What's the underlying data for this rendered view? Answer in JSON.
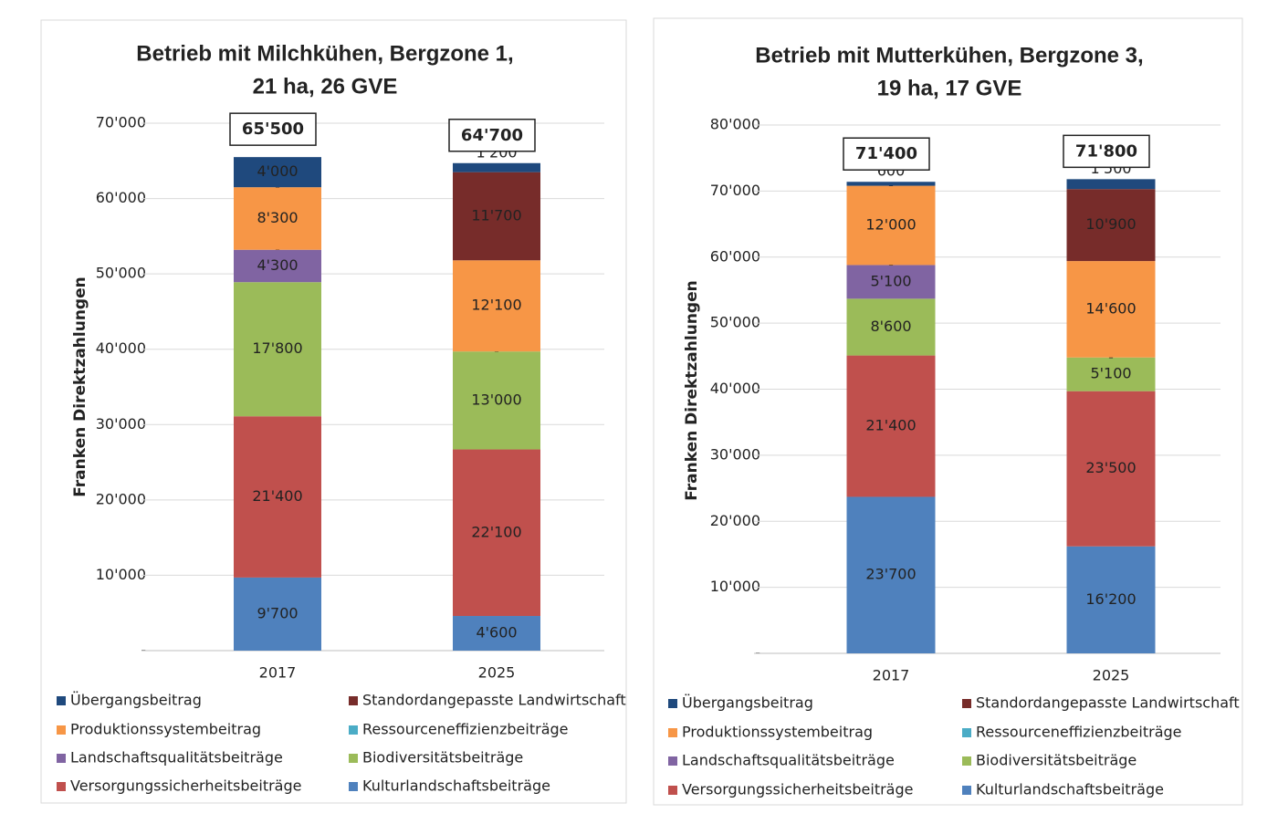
{
  "chart_data": [
    {
      "type": "stacked-bar",
      "title": [
        "Betrieb mit Milchkühen, Bergzone 1,",
        "21 ha, 26 GVE"
      ],
      "y_label": "Franken Direktzahlungen",
      "categories": [
        "2017",
        "2025"
      ],
      "ylim": [
        0,
        70000
      ],
      "yticks": [
        {
          "value": 0,
          "label": "-"
        },
        {
          "value": 10000,
          "label": "10'000"
        },
        {
          "value": 20000,
          "label": "20'000"
        },
        {
          "value": 30000,
          "label": "30'000"
        },
        {
          "value": 40000,
          "label": "40'000"
        },
        {
          "value": 50000,
          "label": "50'000"
        },
        {
          "value": 60000,
          "label": "60'000"
        },
        {
          "value": 70000,
          "label": "70'000"
        }
      ],
      "grid": true,
      "totals": {
        "values": [
          65500,
          64700
        ],
        "value_labels": [
          "65'500",
          "64'700"
        ]
      },
      "series": [
        {
          "name": "Kulturlandschaftsbeiträge",
          "color": "#4f81bd",
          "values": [
            9700,
            4600
          ],
          "value_labels": [
            "9'700",
            "4'600"
          ]
        },
        {
          "name": "Versorgungssicherheitsbeiträge",
          "color": "#c0504d",
          "values": [
            21400,
            22100
          ],
          "value_labels": [
            "21'400",
            "22'100"
          ]
        },
        {
          "name": "Biodiversitätsbeiträge",
          "color": "#9bbb59",
          "values": [
            17800,
            13000
          ],
          "value_labels": [
            "17'800",
            "13'000"
          ]
        },
        {
          "name": "Landschaftsqualitätsbeiträge",
          "color": "#8064a2",
          "values": [
            4300,
            0
          ],
          "value_labels": [
            "4'300",
            "-"
          ]
        },
        {
          "name": "Ressourceneffizienzbeiträge",
          "color": "#4bacc6",
          "values": [
            0,
            null
          ],
          "value_labels": [
            "-",
            null
          ]
        },
        {
          "name": "Produktionssystembeitrag",
          "color": "#f79646",
          "values": [
            8300,
            12100
          ],
          "value_labels": [
            "8'300",
            "12'100"
          ]
        },
        {
          "name": "Standordangepasste Landwirtschaft",
          "color": "#772c2a",
          "values": [
            0,
            11700
          ],
          "value_labels": [
            "-",
            "11'700"
          ]
        },
        {
          "name": "Übergangsbeitrag",
          "color": "#1f497d",
          "values": [
            4000,
            1200
          ],
          "value_labels": [
            "4'000",
            "1'200"
          ]
        }
      ]
    },
    {
      "type": "stacked-bar",
      "title": [
        "Betrieb mit Mutterkühen, Bergzone 3,",
        "19 ha, 17 GVE"
      ],
      "y_label": "Franken Direktzahlungen",
      "categories": [
        "2017",
        "2025"
      ],
      "ylim": [
        0,
        80000
      ],
      "yticks": [
        {
          "value": 0,
          "label": "-"
        },
        {
          "value": 10000,
          "label": "10'000"
        },
        {
          "value": 20000,
          "label": "20'000"
        },
        {
          "value": 30000,
          "label": "30'000"
        },
        {
          "value": 40000,
          "label": "40'000"
        },
        {
          "value": 50000,
          "label": "50'000"
        },
        {
          "value": 60000,
          "label": "60'000"
        },
        {
          "value": 70000,
          "label": "70'000"
        },
        {
          "value": 80000,
          "label": "80'000"
        }
      ],
      "grid": true,
      "totals": {
        "values": [
          71400,
          71800
        ],
        "value_labels": [
          "71'400",
          "71'800"
        ]
      },
      "series": [
        {
          "name": "Kulturlandschaftsbeiträge",
          "color": "#4f81bd",
          "values": [
            23700,
            16200
          ],
          "value_labels": [
            "23'700",
            "16'200"
          ]
        },
        {
          "name": "Versorgungssicherheitsbeiträge",
          "color": "#c0504d",
          "values": [
            21400,
            23500
          ],
          "value_labels": [
            "21'400",
            "23'500"
          ]
        },
        {
          "name": "Biodiversitätsbeiträge",
          "color": "#9bbb59",
          "values": [
            8600,
            5100
          ],
          "value_labels": [
            "8'600",
            "5'100"
          ]
        },
        {
          "name": "Landschaftsqualitätsbeiträge",
          "color": "#8064a2",
          "values": [
            5100,
            0
          ],
          "value_labels": [
            "5'100",
            "-"
          ]
        },
        {
          "name": "Ressourceneffizienzbeiträge",
          "color": "#4bacc6",
          "values": [
            0,
            null
          ],
          "value_labels": [
            "-",
            null
          ]
        },
        {
          "name": "Produktionssystembeitrag",
          "color": "#f79646",
          "values": [
            12000,
            14600
          ],
          "value_labels": [
            "12'000",
            "14'600"
          ]
        },
        {
          "name": "Standordangepasste Landwirtschaft",
          "color": "#772c2a",
          "values": [
            0,
            10900
          ],
          "value_labels": [
            "-",
            "10'900"
          ]
        },
        {
          "name": "Übergangsbeitrag",
          "color": "#1f497d",
          "values": [
            600,
            1500
          ],
          "value_labels": [
            "600",
            "1'500"
          ]
        }
      ]
    }
  ]
}
